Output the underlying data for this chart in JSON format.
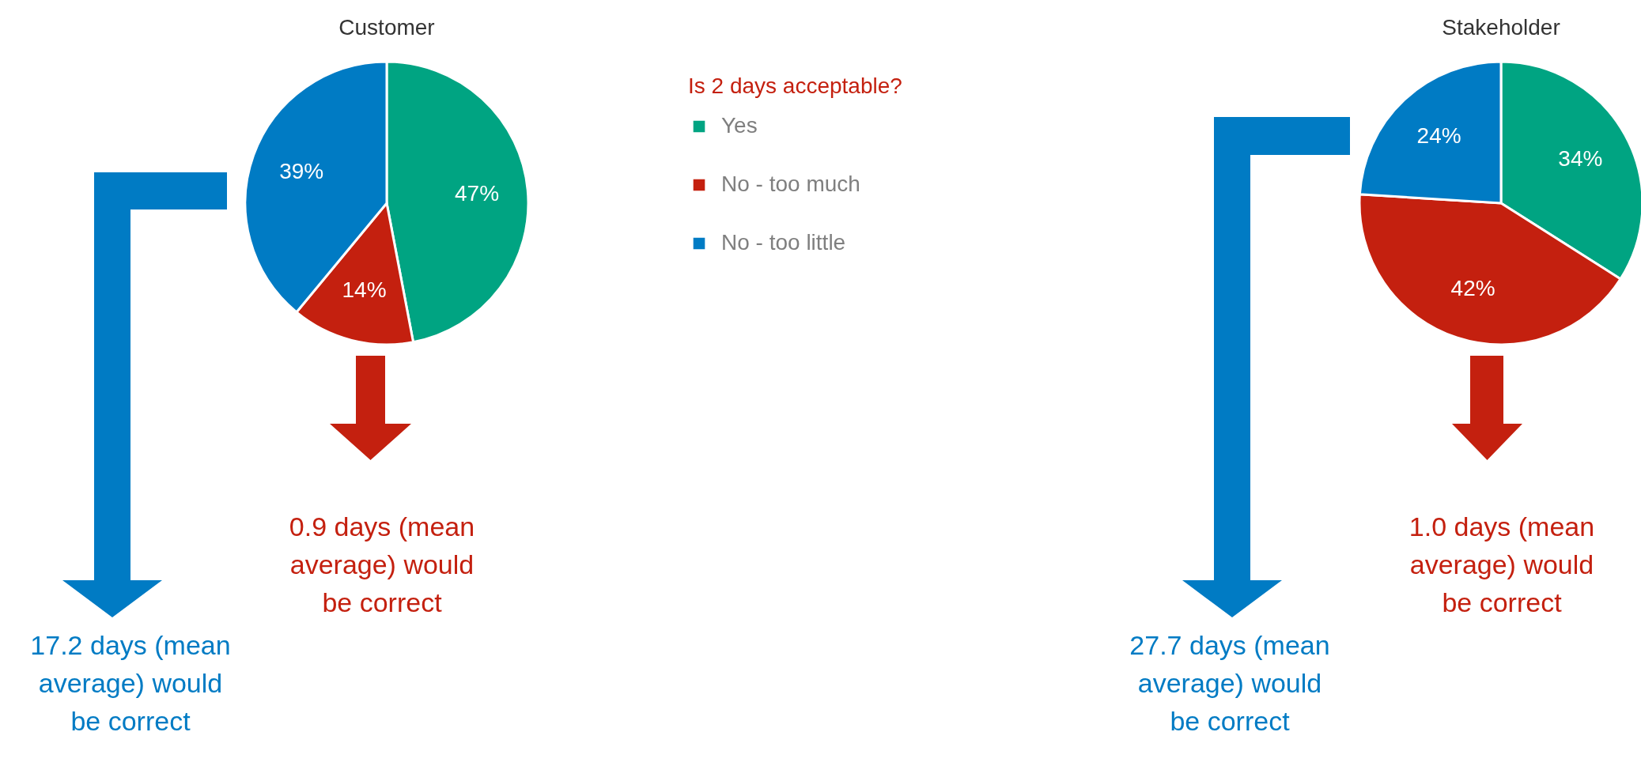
{
  "chart_data": [
    {
      "type": "pie",
      "title": "Customer",
      "categories": [
        "Yes",
        "No - too much",
        "No - too little"
      ],
      "values": [
        47,
        14,
        39
      ],
      "colors": [
        "#00a482",
        "#c4200f",
        "#007bc4"
      ],
      "value_labels": [
        "47%",
        "14%",
        "39%"
      ],
      "legend": "right",
      "legend_title": "Is 2 days acceptable?",
      "annotations": [
        "0.9 days (mean average) would be correct",
        "17.2 days (mean average) would be correct"
      ]
    },
    {
      "type": "pie",
      "title": "Stakeholder",
      "values": [
        34,
        42,
        24
      ],
      "colors": [
        "#00a482",
        "#c4200f",
        "#007bc4"
      ],
      "value_labels": [
        "34%",
        "42%",
        "24%"
      ],
      "annotations": [
        "1.0 days (mean average) would be correct",
        "27.7 days (mean average) would be correct"
      ]
    }
  ]
}
